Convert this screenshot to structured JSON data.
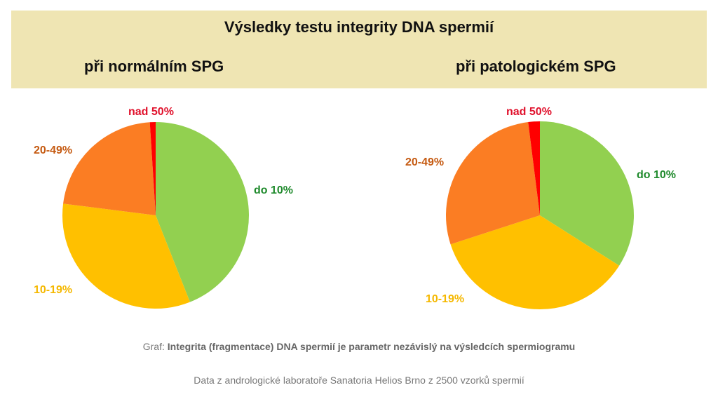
{
  "header": {
    "title": "Výsledky testu integrity DNA spermií"
  },
  "footer": {
    "caption_prefix": "Graf:",
    "caption_bold": "Integrita (fragmentace) DNA spermií je parametr nezávislý na výsledcích spermiogramu",
    "source": "Data z andrologické laboratoře Sanatoria Helios Brno z 2500 vzorků spermií"
  },
  "chart_data": [
    {
      "type": "pie",
      "title": "při normálním SPG",
      "categories": [
        "do 10%",
        "10-19%",
        "20-49%",
        "nad 50%"
      ],
      "values": [
        44,
        33,
        22,
        1
      ],
      "colors": [
        "#92d050",
        "#ffc000",
        "#fb7d23",
        "#ff0000"
      ],
      "label_colors": [
        "#1f8a2c",
        "#f5b800",
        "#c55a11",
        "#e0102b"
      ]
    },
    {
      "type": "pie",
      "title": "při patologickém SPG",
      "categories": [
        "do 10%",
        "10-19%",
        "20-49%",
        "nad 50%"
      ],
      "values": [
        34,
        36,
        28,
        2
      ],
      "colors": [
        "#92d050",
        "#ffc000",
        "#fb7d23",
        "#ff0000"
      ],
      "label_colors": [
        "#1f8a2c",
        "#f5b800",
        "#c55a11",
        "#e0102b"
      ]
    }
  ]
}
